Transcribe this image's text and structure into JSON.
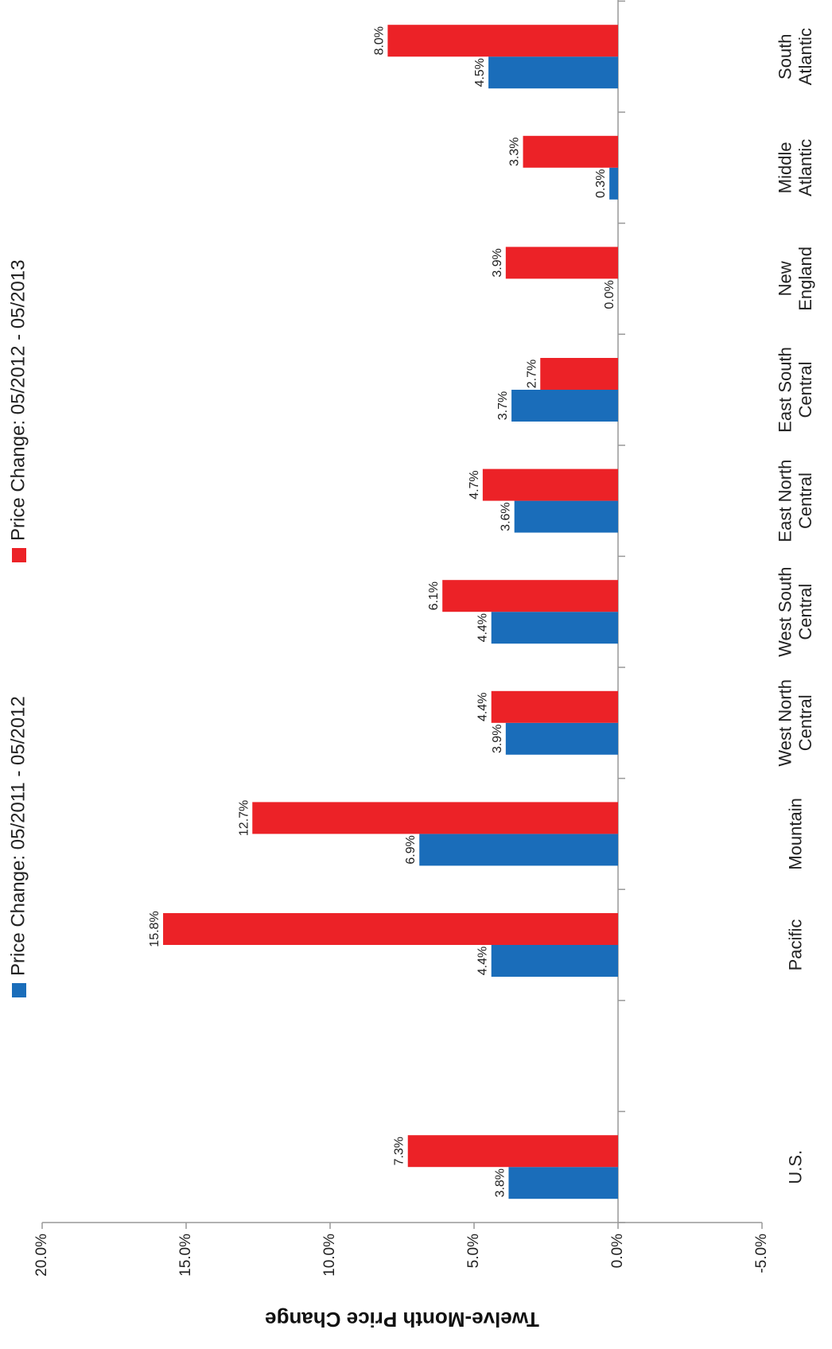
{
  "chart_data": {
    "type": "bar",
    "orientation": "rotated",
    "ylabel": "Twelve-Month Price Change",
    "ylim": [
      -5,
      20
    ],
    "yticks": [
      "20.0%",
      "15.0%",
      "10.0%",
      "5.0%",
      "0.0%",
      "-5.0%"
    ],
    "ytick_values": [
      20,
      15,
      10,
      5,
      0,
      -5
    ],
    "categories": [
      [
        "U.S."
      ],
      [],
      [
        "Pacific"
      ],
      [
        "Mountain"
      ],
      [
        "West North",
        "Central"
      ],
      [
        "West South",
        "Central"
      ],
      [
        "East North",
        "Central"
      ],
      [
        "East South",
        "Central"
      ],
      [
        "New",
        "England"
      ],
      [
        "Middle",
        "Atlantic"
      ],
      [
        "South",
        "Atlantic"
      ]
    ],
    "series": [
      {
        "name": "Price Change:  05/2011 - 05/2012",
        "color": "#1a6dba",
        "values": [
          3.8,
          null,
          4.4,
          6.9,
          3.9,
          4.4,
          3.6,
          3.7,
          0.0,
          0.3,
          4.5
        ],
        "labels": [
          "3.8%",
          "",
          "4.4%",
          "6.9%",
          "3.9%",
          "4.4%",
          "3.6%",
          "3.7%",
          "0.0%",
          "0.3%",
          "4.5%"
        ]
      },
      {
        "name": "Price Change:  05/2012 - 05/2013",
        "color": "#ec2227",
        "values": [
          7.3,
          null,
          15.8,
          12.7,
          4.4,
          6.1,
          4.7,
          2.7,
          3.9,
          3.3,
          8.0
        ],
        "labels": [
          "7.3%",
          "",
          "15.8%",
          "12.7%",
          "4.4%",
          "6.1%",
          "4.7%",
          "2.7%",
          "3.9%",
          "3.3%",
          "8.0%"
        ]
      }
    ],
    "legend": "top",
    "grid": false
  }
}
